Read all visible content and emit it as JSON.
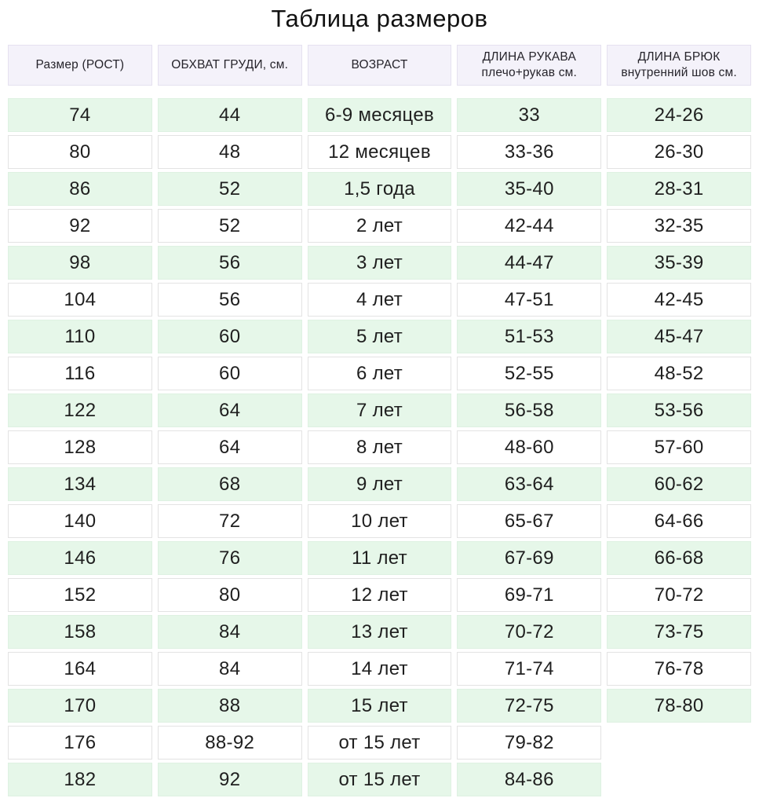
{
  "chart_data": {
    "type": "table",
    "title": "Таблица размеров",
    "columns": [
      {
        "lines": [
          "Размер (РОСТ)"
        ]
      },
      {
        "lines": [
          "ОБХВАТ ГРУДИ, см."
        ]
      },
      {
        "lines": [
          "ВОЗРАСТ"
        ]
      },
      {
        "lines": [
          "ДЛИНА РУКАВА",
          "плечо+рукав см."
        ]
      },
      {
        "lines": [
          "ДЛИНА БРЮК",
          "внутренний шов см."
        ]
      }
    ],
    "rows": [
      [
        "74",
        "44",
        "6-9 месяцев",
        "33",
        "24-26"
      ],
      [
        "80",
        "48",
        "12 месяцев",
        "33-36",
        "26-30"
      ],
      [
        "86",
        "52",
        "1,5 года",
        "35-40",
        "28-31"
      ],
      [
        "92",
        "52",
        "2 лет",
        "42-44",
        "32-35"
      ],
      [
        "98",
        "56",
        "3 лет",
        "44-47",
        "35-39"
      ],
      [
        "104",
        "56",
        "4 лет",
        "47-51",
        "42-45"
      ],
      [
        "110",
        "60",
        "5 лет",
        "51-53",
        "45-47"
      ],
      [
        "116",
        "60",
        "6 лет",
        "52-55",
        "48-52"
      ],
      [
        "122",
        "64",
        "7 лет",
        "56-58",
        "53-56"
      ],
      [
        "128",
        "64",
        "8 лет",
        "48-60",
        "57-60"
      ],
      [
        "134",
        "68",
        "9 лет",
        "63-64",
        "60-62"
      ],
      [
        "140",
        "72",
        "10 лет",
        "65-67",
        "64-66"
      ],
      [
        "146",
        "76",
        "11 лет",
        "67-69",
        "66-68"
      ],
      [
        "152",
        "80",
        "12 лет",
        "69-71",
        "70-72"
      ],
      [
        "158",
        "84",
        "13 лет",
        "70-72",
        "73-75"
      ],
      [
        "164",
        "84",
        "14 лет",
        "71-74",
        "76-78"
      ],
      [
        "170",
        "88",
        "15 лет",
        "72-75",
        "78-80"
      ],
      [
        "176",
        "88-92",
        "от 15 лет",
        "79-82",
        null
      ],
      [
        "182",
        "92",
        "от 15 лет",
        "84-86",
        null
      ]
    ],
    "layout": {
      "striping": "odd-rows-green",
      "first_row_green": true
    }
  },
  "colors": {
    "row_highlight": "#e6f7e9",
    "row_highlight_border": "#def1e2",
    "header_bg": "#f4f2fa",
    "header_border": "#e5e1f0",
    "cell_border": "#e3e3e3",
    "text": "#1f1f1f"
  }
}
